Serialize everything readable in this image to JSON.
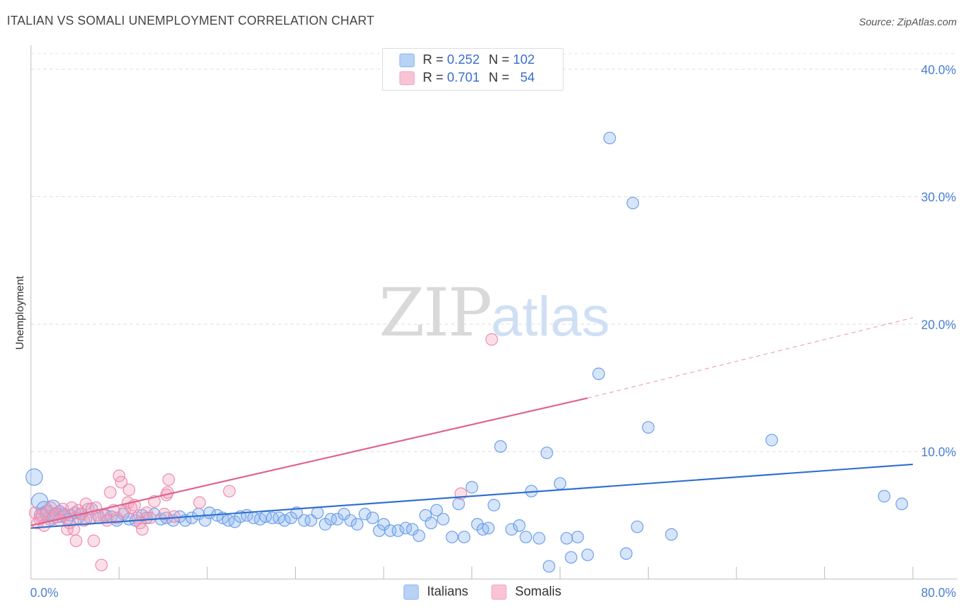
{
  "title": "ITALIAN VS SOMALI UNEMPLOYMENT CORRELATION CHART",
  "source": "Source: ZipAtlas.com",
  "watermark": {
    "zip": "ZIP",
    "atlas": "atlas"
  },
  "legend": {
    "rows": [
      {
        "r_label": "R = ",
        "r_value": "0.252",
        "n_label": "N = ",
        "n_value": "102",
        "color": "#8ab4f0"
      },
      {
        "r_label": "R = ",
        "r_value": "0.701",
        "n_label": "N = ",
        "n_value": "54",
        "color": "#f4a3bd"
      }
    ]
  },
  "bottom_legend": [
    {
      "label": "Italians",
      "color": "#b8d2f5"
    },
    {
      "label": "Somalis",
      "color": "#f8c4d4"
    }
  ],
  "chart_data": {
    "type": "scatter",
    "ylabel": "Unemployment",
    "x_tick_labels": [
      "0.0%",
      "80.0%"
    ],
    "y_tick_labels": [
      "10.0%",
      "20.0%",
      "30.0%",
      "40.0%"
    ],
    "xlim": [
      0,
      80
    ],
    "ylim": [
      0,
      41.5
    ],
    "y_gridlines": [
      10,
      20,
      30,
      40
    ],
    "grid": true,
    "legend_placement": "top-center",
    "colors": {
      "italians": "#4a86e0",
      "somalis": "#ee7fa2",
      "italians_line": "#2f6fd0",
      "somalis_line": "#e0608c"
    },
    "series": [
      {
        "name": "Italians",
        "trend": {
          "x": [
            0,
            80
          ],
          "y": [
            4.0,
            9.0
          ],
          "style": "solid"
        },
        "points": [
          [
            0.3,
            8.0
          ],
          [
            0.8,
            6.1
          ],
          [
            1.0,
            5.0
          ],
          [
            1.2,
            5.5
          ],
          [
            1.5,
            5.2
          ],
          [
            1.8,
            4.8
          ],
          [
            2.0,
            5.6
          ],
          [
            2.3,
            5.0
          ],
          [
            2.6,
            5.3
          ],
          [
            2.8,
            4.9
          ],
          [
            3.0,
            5.1
          ],
          [
            3.3,
            4.7
          ],
          [
            3.6,
            5.0
          ],
          [
            4.0,
            5.2
          ],
          [
            4.3,
            4.8
          ],
          [
            4.6,
            5.1
          ],
          [
            5.0,
            4.7
          ],
          [
            5.5,
            5.5
          ],
          [
            6.2,
            4.8
          ],
          [
            6.8,
            5.0
          ],
          [
            7.3,
            4.9
          ],
          [
            7.8,
            4.6
          ],
          [
            8.4,
            5.1
          ],
          [
            8.9,
            4.7
          ],
          [
            9.5,
            4.6
          ],
          [
            10.1,
            5.0
          ],
          [
            10.5,
            4.8
          ],
          [
            11.2,
            5.1
          ],
          [
            11.8,
            4.7
          ],
          [
            12.3,
            4.8
          ],
          [
            12.9,
            4.6
          ],
          [
            13.5,
            4.9
          ],
          [
            14.0,
            4.6
          ],
          [
            14.6,
            4.8
          ],
          [
            15.2,
            5.1
          ],
          [
            15.8,
            4.6
          ],
          [
            16.2,
            5.2
          ],
          [
            16.9,
            5.0
          ],
          [
            17.4,
            4.8
          ],
          [
            17.9,
            4.6
          ],
          [
            18.5,
            4.5
          ],
          [
            19.0,
            4.9
          ],
          [
            19.6,
            5.0
          ],
          [
            20.2,
            4.8
          ],
          [
            20.8,
            4.7
          ],
          [
            21.3,
            4.9
          ],
          [
            21.9,
            4.8
          ],
          [
            22.5,
            4.8
          ],
          [
            23.0,
            4.6
          ],
          [
            23.6,
            4.8
          ],
          [
            24.1,
            5.2
          ],
          [
            24.8,
            4.6
          ],
          [
            25.4,
            4.6
          ],
          [
            26.0,
            5.2
          ],
          [
            26.7,
            4.3
          ],
          [
            27.2,
            4.7
          ],
          [
            27.8,
            4.7
          ],
          [
            28.4,
            5.1
          ],
          [
            29.0,
            4.6
          ],
          [
            29.6,
            4.3
          ],
          [
            30.3,
            5.1
          ],
          [
            31.0,
            4.8
          ],
          [
            31.6,
            3.8
          ],
          [
            32.0,
            4.3
          ],
          [
            32.6,
            3.8
          ],
          [
            33.3,
            3.8
          ],
          [
            34.0,
            4.0
          ],
          [
            34.6,
            3.9
          ],
          [
            35.2,
            3.4
          ],
          [
            35.8,
            5.0
          ],
          [
            36.3,
            4.4
          ],
          [
            36.8,
            5.4
          ],
          [
            37.4,
            4.7
          ],
          [
            38.2,
            3.3
          ],
          [
            38.8,
            5.9
          ],
          [
            39.3,
            3.3
          ],
          [
            40.0,
            7.2
          ],
          [
            40.5,
            4.3
          ],
          [
            41.0,
            3.9
          ],
          [
            41.5,
            4.0
          ],
          [
            42.0,
            5.8
          ],
          [
            42.6,
            10.4
          ],
          [
            43.6,
            3.9
          ],
          [
            44.3,
            4.2
          ],
          [
            44.9,
            3.3
          ],
          [
            45.4,
            6.9
          ],
          [
            46.1,
            3.2
          ],
          [
            46.8,
            9.9
          ],
          [
            48.0,
            7.5
          ],
          [
            48.6,
            3.2
          ],
          [
            47.0,
            1.0
          ],
          [
            49.0,
            1.7
          ],
          [
            49.6,
            3.3
          ],
          [
            50.5,
            1.9
          ],
          [
            51.5,
            16.1
          ],
          [
            52.5,
            34.6
          ],
          [
            54.0,
            2.0
          ],
          [
            54.6,
            29.5
          ],
          [
            55.0,
            4.1
          ],
          [
            56.0,
            11.9
          ],
          [
            58.1,
            3.5
          ],
          [
            67.2,
            10.9
          ],
          [
            77.4,
            6.5
          ],
          [
            79.0,
            5.9
          ]
        ]
      },
      {
        "name": "Somalis",
        "trend": {
          "x": [
            0,
            50.5
          ],
          "y": [
            4.2,
            14.2
          ],
          "style": "solid",
          "extension": {
            "x": [
              50.5,
              80
            ],
            "y": [
              14.2,
              20.5
            ],
            "style": "dashed"
          }
        },
        "points": [
          [
            0.4,
            5.2
          ],
          [
            0.6,
            4.4
          ],
          [
            0.8,
            4.7
          ],
          [
            1.0,
            5.0
          ],
          [
            1.2,
            4.2
          ],
          [
            1.5,
            5.3
          ],
          [
            1.8,
            5.6
          ],
          [
            2.0,
            4.8
          ],
          [
            2.3,
            5.1
          ],
          [
            2.6,
            4.6
          ],
          [
            2.9,
            5.5
          ],
          [
            3.1,
            5.0
          ],
          [
            3.3,
            3.9
          ],
          [
            3.5,
            4.4
          ],
          [
            3.7,
            5.6
          ],
          [
            3.9,
            3.9
          ],
          [
            4.1,
            3.0
          ],
          [
            4.3,
            5.4
          ],
          [
            4.5,
            5.1
          ],
          [
            4.8,
            4.6
          ],
          [
            5.0,
            5.9
          ],
          [
            5.2,
            5.5
          ],
          [
            5.4,
            4.8
          ],
          [
            5.7,
            3.0
          ],
          [
            5.9,
            5.6
          ],
          [
            6.1,
            5.0
          ],
          [
            6.4,
            1.1
          ],
          [
            6.6,
            5.0
          ],
          [
            6.9,
            4.6
          ],
          [
            7.2,
            6.8
          ],
          [
            7.5,
            5.4
          ],
          [
            7.8,
            4.8
          ],
          [
            8.0,
            8.1
          ],
          [
            8.2,
            7.6
          ],
          [
            8.5,
            5.3
          ],
          [
            8.8,
            6.0
          ],
          [
            8.9,
            7.0
          ],
          [
            9.1,
            5.6
          ],
          [
            9.4,
            5.8
          ],
          [
            9.7,
            4.8
          ],
          [
            9.9,
            4.4
          ],
          [
            10.1,
            3.9
          ],
          [
            10.5,
            5.2
          ],
          [
            11.2,
            6.1
          ],
          [
            12.1,
            5.1
          ],
          [
            12.3,
            6.6
          ],
          [
            12.4,
            6.8
          ],
          [
            12.5,
            7.8
          ],
          [
            15.3,
            6.0
          ],
          [
            18.0,
            6.9
          ],
          [
            39.0,
            6.7
          ],
          [
            41.8,
            18.8
          ],
          [
            13.0,
            4.9
          ],
          [
            10.8,
            4.8
          ]
        ]
      }
    ]
  }
}
